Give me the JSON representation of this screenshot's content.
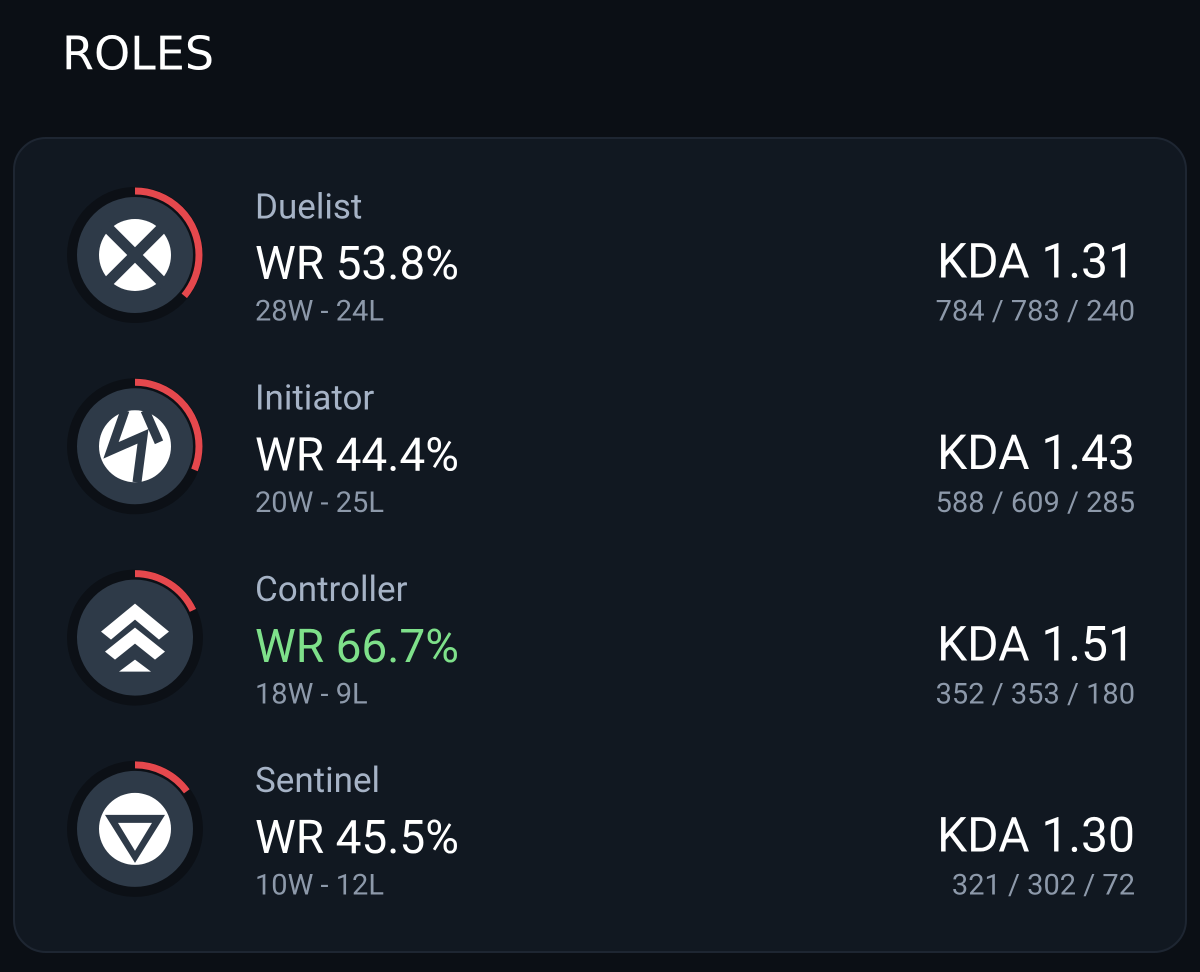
{
  "header": {
    "title": "ROLES"
  },
  "roles": [
    {
      "name": "Duelist",
      "wr": "WR 53.8%",
      "wr_color": "#ffffff",
      "record": "28W - 24L",
      "kda": "KDA 1.31",
      "stats": "784 / 783 / 240",
      "share": 0.36
    },
    {
      "name": "Initiator",
      "wr": "WR 44.4%",
      "wr_color": "#ffffff",
      "record": "20W - 25L",
      "kda": "KDA 1.43",
      "stats": "588 / 609 / 285",
      "share": 0.31
    },
    {
      "name": "Controller",
      "wr": "WR 66.7%",
      "wr_color": "#7ee08a",
      "record": "18W - 9L",
      "kda": "KDA 1.51",
      "stats": "352 / 353 / 180",
      "share": 0.18
    },
    {
      "name": "Sentinel",
      "wr": "WR 45.5%",
      "wr_color": "#ffffff",
      "record": "10W - 12L",
      "kda": "KDA 1.30",
      "stats": "321 / 302 / 72",
      "share": 0.15
    }
  ]
}
